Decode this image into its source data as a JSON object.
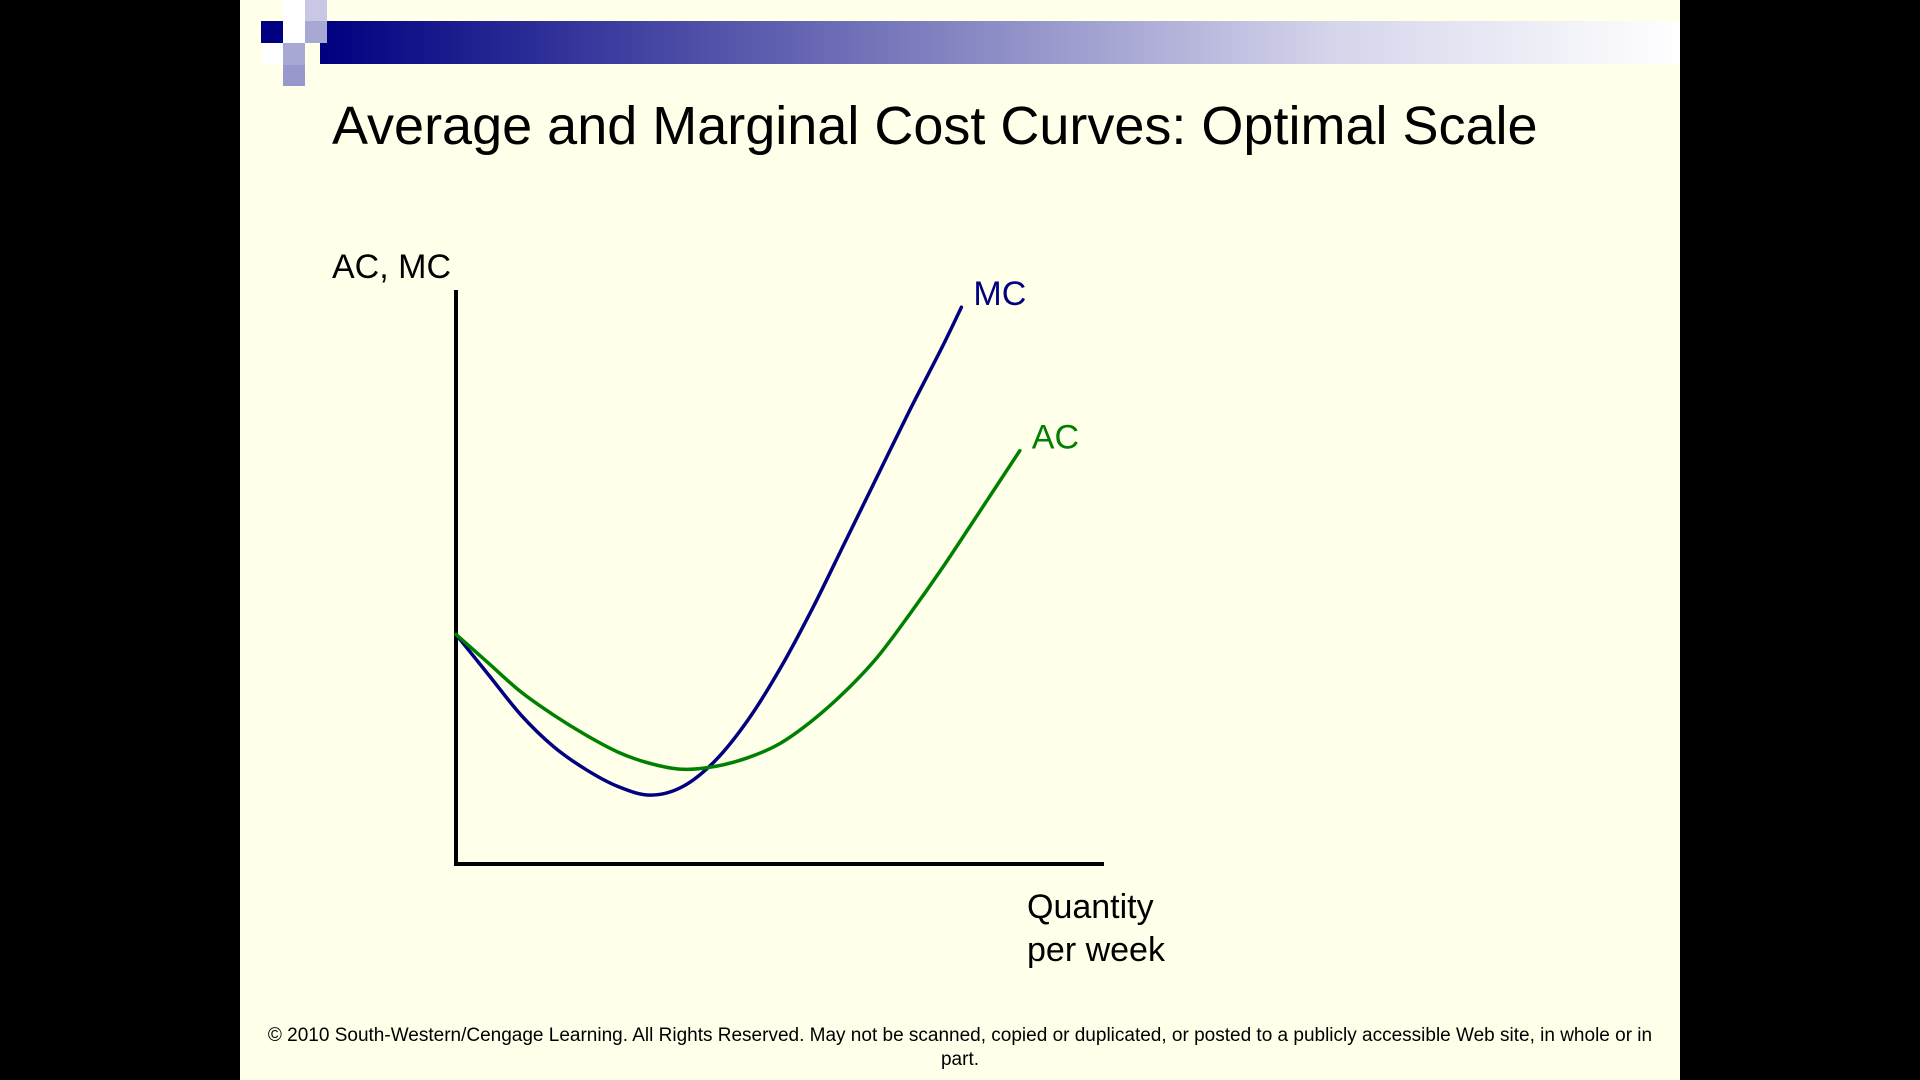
{
  "slide": {
    "title": "Average and Marginal Cost Curves: Optimal Scale",
    "footer": "© 2010 South-Western/Cengage Learning. All Rights Reserved. May not be scanned, copied or duplicated, or posted to a publicly accessible Web site, in whole or in part.",
    "background_color": "#FFFFEA",
    "accent_color": "#000080"
  },
  "chart_data": {
    "type": "line",
    "title": "Average and Marginal Cost Curves: Optimal Scale",
    "ylabel": "AC, MC",
    "xlabel": "Quantity per week",
    "xlabel_lines": [
      "Quantity",
      "per week"
    ],
    "grid": false,
    "legend": "none",
    "ticks": false,
    "xlim": [
      0,
      10
    ],
    "ylim": [
      0,
      10
    ],
    "series": [
      {
        "name": "MC",
        "color": "#000080",
        "x": [
          0,
          0.5,
          1.0,
          1.5,
          2.0,
          2.5,
          3.0,
          3.5,
          4.0,
          4.5,
          5.0,
          5.5,
          6.0,
          6.5,
          7.0,
          7.5,
          7.8
        ],
        "y": [
          4.0,
          3.3,
          2.6,
          2.05,
          1.65,
          1.35,
          1.2,
          1.35,
          1.8,
          2.5,
          3.4,
          4.45,
          5.6,
          6.75,
          7.9,
          9.0,
          9.7
        ]
      },
      {
        "name": "AC",
        "color": "#008000",
        "x": [
          0,
          0.5,
          1.0,
          1.5,
          2.0,
          2.5,
          3.0,
          3.5,
          4.0,
          4.5,
          5.0,
          5.5,
          6.0,
          6.5,
          7.0,
          7.5,
          8.0,
          8.7
        ],
        "y": [
          4.0,
          3.5,
          3.0,
          2.6,
          2.25,
          1.95,
          1.75,
          1.65,
          1.7,
          1.85,
          2.1,
          2.5,
          3.0,
          3.6,
          4.35,
          5.15,
          6.0,
          7.2
        ]
      }
    ]
  }
}
